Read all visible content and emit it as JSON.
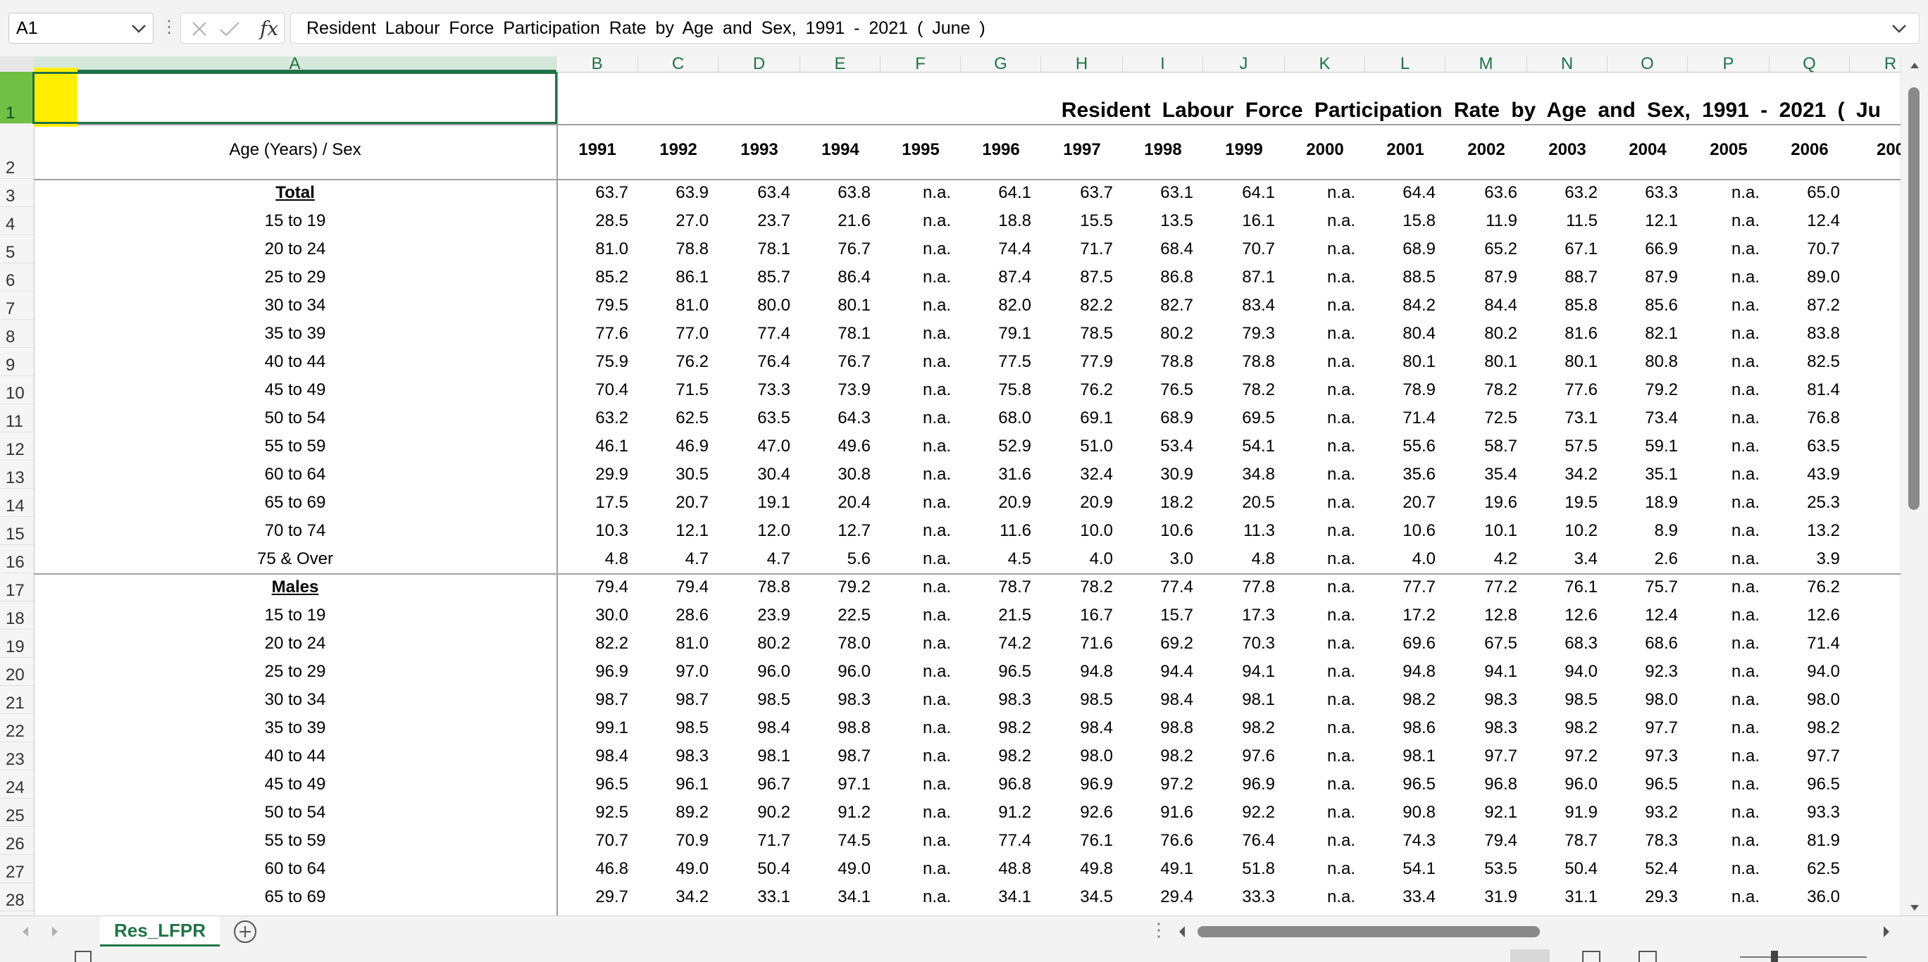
{
  "formula_bar": {
    "name_box": "A1",
    "fx": "fx",
    "formula": "Resident Labour Force Participation Rate by Age and Sex, 1991 - 2021 ( June )"
  },
  "sheet": {
    "columns": [
      "A",
      "B",
      "C",
      "D",
      "E",
      "F",
      "G",
      "H",
      "I",
      "J",
      "K",
      "L",
      "M",
      "N",
      "O",
      "P",
      "Q",
      "R"
    ],
    "selected_column": "A",
    "row_numbers": [
      "1",
      "2",
      "3",
      "4",
      "5",
      "6",
      "7",
      "8",
      "9",
      "10",
      "11",
      "12",
      "13",
      "14",
      "15",
      "16",
      "17",
      "18",
      "19",
      "20",
      "21",
      "22",
      "23",
      "24",
      "25",
      "26",
      "27",
      "28"
    ],
    "selected_row": "1",
    "title": "Resident Labour Force Participation Rate by Age and Sex, 1991 - 2021 ( Ju",
    "header_label": "Age (Years) / Sex",
    "years": [
      "1991",
      "1992",
      "1993",
      "1994",
      "1995",
      "1996",
      "1997",
      "1998",
      "1999",
      "2000",
      "2001",
      "2002",
      "2003",
      "2004",
      "2005",
      "2006",
      "200"
    ],
    "rows": [
      {
        "label": "Total",
        "bold": true,
        "values": [
          "63.7",
          "63.9",
          "63.4",
          "63.8",
          "n.a.",
          "64.1",
          "63.7",
          "63.1",
          "64.1",
          "n.a.",
          "64.4",
          "63.6",
          "63.2",
          "63.3",
          "n.a.",
          "65.0"
        ]
      },
      {
        "label": "15 to 19",
        "values": [
          "28.5",
          "27.0",
          "23.7",
          "21.6",
          "n.a.",
          "18.8",
          "15.5",
          "13.5",
          "16.1",
          "n.a.",
          "15.8",
          "11.9",
          "11.5",
          "12.1",
          "n.a.",
          "12.4"
        ]
      },
      {
        "label": "20 to 24",
        "values": [
          "81.0",
          "78.8",
          "78.1",
          "76.7",
          "n.a.",
          "74.4",
          "71.7",
          "68.4",
          "70.7",
          "n.a.",
          "68.9",
          "65.2",
          "67.1",
          "66.9",
          "n.a.",
          "70.7"
        ]
      },
      {
        "label": "25 to 29",
        "values": [
          "85.2",
          "86.1",
          "85.7",
          "86.4",
          "n.a.",
          "87.4",
          "87.5",
          "86.8",
          "87.1",
          "n.a.",
          "88.5",
          "87.9",
          "88.7",
          "87.9",
          "n.a.",
          "89.0"
        ]
      },
      {
        "label": "30 to 34",
        "values": [
          "79.5",
          "81.0",
          "80.0",
          "80.1",
          "n.a.",
          "82.0",
          "82.2",
          "82.7",
          "83.4",
          "n.a.",
          "84.2",
          "84.4",
          "85.8",
          "85.6",
          "n.a.",
          "87.2"
        ]
      },
      {
        "label": "35 to 39",
        "values": [
          "77.6",
          "77.0",
          "77.4",
          "78.1",
          "n.a.",
          "79.1",
          "78.5",
          "80.2",
          "79.3",
          "n.a.",
          "80.4",
          "80.2",
          "81.6",
          "82.1",
          "n.a.",
          "83.8"
        ]
      },
      {
        "label": "40 to 44",
        "values": [
          "75.9",
          "76.2",
          "76.4",
          "76.7",
          "n.a.",
          "77.5",
          "77.9",
          "78.8",
          "78.8",
          "n.a.",
          "80.1",
          "80.1",
          "80.1",
          "80.8",
          "n.a.",
          "82.5"
        ]
      },
      {
        "label": "45 to 49",
        "values": [
          "70.4",
          "71.5",
          "73.3",
          "73.9",
          "n.a.",
          "75.8",
          "76.2",
          "76.5",
          "78.2",
          "n.a.",
          "78.9",
          "78.2",
          "77.6",
          "79.2",
          "n.a.",
          "81.4"
        ]
      },
      {
        "label": "50 to 54",
        "values": [
          "63.2",
          "62.5",
          "63.5",
          "64.3",
          "n.a.",
          "68.0",
          "69.1",
          "68.9",
          "69.5",
          "n.a.",
          "71.4",
          "72.5",
          "73.1",
          "73.4",
          "n.a.",
          "76.8"
        ]
      },
      {
        "label": "55 to 59",
        "values": [
          "46.1",
          "46.9",
          "47.0",
          "49.6",
          "n.a.",
          "52.9",
          "51.0",
          "53.4",
          "54.1",
          "n.a.",
          "55.6",
          "58.7",
          "57.5",
          "59.1",
          "n.a.",
          "63.5"
        ]
      },
      {
        "label": "60 to 64",
        "values": [
          "29.9",
          "30.5",
          "30.4",
          "30.8",
          "n.a.",
          "31.6",
          "32.4",
          "30.9",
          "34.8",
          "n.a.",
          "35.6",
          "35.4",
          "34.2",
          "35.1",
          "n.a.",
          "43.9"
        ]
      },
      {
        "label": "65 to 69",
        "values": [
          "17.5",
          "20.7",
          "19.1",
          "20.4",
          "n.a.",
          "20.9",
          "20.9",
          "18.2",
          "20.5",
          "n.a.",
          "20.7",
          "19.6",
          "19.5",
          "18.9",
          "n.a.",
          "25.3"
        ]
      },
      {
        "label": "70 to 74",
        "values": [
          "10.3",
          "12.1",
          "12.0",
          "12.7",
          "n.a.",
          "11.6",
          "10.0",
          "10.6",
          "11.3",
          "n.a.",
          "10.6",
          "10.1",
          "10.2",
          "8.9",
          "n.a.",
          "13.2"
        ]
      },
      {
        "label": "75 & Over",
        "values": [
          "4.8",
          "4.7",
          "4.7",
          "5.6",
          "n.a.",
          "4.5",
          "4.0",
          "3.0",
          "4.8",
          "n.a.",
          "4.0",
          "4.2",
          "3.4",
          "2.6",
          "n.a.",
          "3.9"
        ]
      },
      {
        "label": "Males",
        "bold": true,
        "values": [
          "79.4",
          "79.4",
          "78.8",
          "79.2",
          "n.a.",
          "78.7",
          "78.2",
          "77.4",
          "77.8",
          "n.a.",
          "77.7",
          "77.2",
          "76.1",
          "75.7",
          "n.a.",
          "76.2"
        ]
      },
      {
        "label": "15 to 19",
        "values": [
          "30.0",
          "28.6",
          "23.9",
          "22.5",
          "n.a.",
          "21.5",
          "16.7",
          "15.7",
          "17.3",
          "n.a.",
          "17.2",
          "12.8",
          "12.6",
          "12.4",
          "n.a.",
          "12.6"
        ]
      },
      {
        "label": "20 to 24",
        "values": [
          "82.2",
          "81.0",
          "80.2",
          "78.0",
          "n.a.",
          "74.2",
          "71.6",
          "69.2",
          "70.3",
          "n.a.",
          "69.6",
          "67.5",
          "68.3",
          "68.6",
          "n.a.",
          "71.4"
        ]
      },
      {
        "label": "25 to 29",
        "values": [
          "96.9",
          "97.0",
          "96.0",
          "96.0",
          "n.a.",
          "96.5",
          "94.8",
          "94.4",
          "94.1",
          "n.a.",
          "94.8",
          "94.1",
          "94.0",
          "92.3",
          "n.a.",
          "94.0"
        ]
      },
      {
        "label": "30 to 34",
        "values": [
          "98.7",
          "98.7",
          "98.5",
          "98.3",
          "n.a.",
          "98.3",
          "98.5",
          "98.4",
          "98.1",
          "n.a.",
          "98.2",
          "98.3",
          "98.5",
          "98.0",
          "n.a.",
          "98.0"
        ]
      },
      {
        "label": "35 to 39",
        "values": [
          "99.1",
          "98.5",
          "98.4",
          "98.8",
          "n.a.",
          "98.2",
          "98.4",
          "98.8",
          "98.2",
          "n.a.",
          "98.6",
          "98.3",
          "98.2",
          "97.7",
          "n.a.",
          "98.2"
        ]
      },
      {
        "label": "40 to 44",
        "values": [
          "98.4",
          "98.3",
          "98.1",
          "98.7",
          "n.a.",
          "98.2",
          "98.0",
          "98.2",
          "97.6",
          "n.a.",
          "98.1",
          "97.7",
          "97.2",
          "97.3",
          "n.a.",
          "97.7"
        ]
      },
      {
        "label": "45 to 49",
        "values": [
          "96.5",
          "96.1",
          "96.7",
          "97.1",
          "n.a.",
          "96.8",
          "96.9",
          "97.2",
          "96.9",
          "n.a.",
          "96.5",
          "96.8",
          "96.0",
          "96.5",
          "n.a.",
          "96.5"
        ]
      },
      {
        "label": "50 to 54",
        "values": [
          "92.5",
          "89.2",
          "90.2",
          "91.2",
          "n.a.",
          "91.2",
          "92.6",
          "91.6",
          "92.2",
          "n.a.",
          "90.8",
          "92.1",
          "91.9",
          "93.2",
          "n.a.",
          "93.3"
        ]
      },
      {
        "label": "55 to 59",
        "values": [
          "70.7",
          "70.9",
          "71.7",
          "74.5",
          "n.a.",
          "77.4",
          "76.1",
          "76.6",
          "76.4",
          "n.a.",
          "74.3",
          "79.4",
          "78.7",
          "78.3",
          "n.a.",
          "81.9"
        ]
      },
      {
        "label": "60 to 64",
        "values": [
          "46.8",
          "49.0",
          "50.4",
          "49.0",
          "n.a.",
          "48.8",
          "49.8",
          "49.1",
          "51.8",
          "n.a.",
          "54.1",
          "53.5",
          "50.4",
          "52.4",
          "n.a.",
          "62.5"
        ]
      },
      {
        "label": "65 to 69",
        "values": [
          "29.7",
          "34.2",
          "33.1",
          "34.1",
          "n.a.",
          "34.1",
          "34.5",
          "29.4",
          "33.3",
          "n.a.",
          "33.4",
          "31.9",
          "31.1",
          "29.3",
          "n.a.",
          "36.0"
        ]
      }
    ]
  },
  "sheet_tabs": {
    "active": "Res_LFPR"
  },
  "colors": {
    "accent": "#217346",
    "highlight": "#ffee00",
    "row_select": "#6fc045"
  }
}
